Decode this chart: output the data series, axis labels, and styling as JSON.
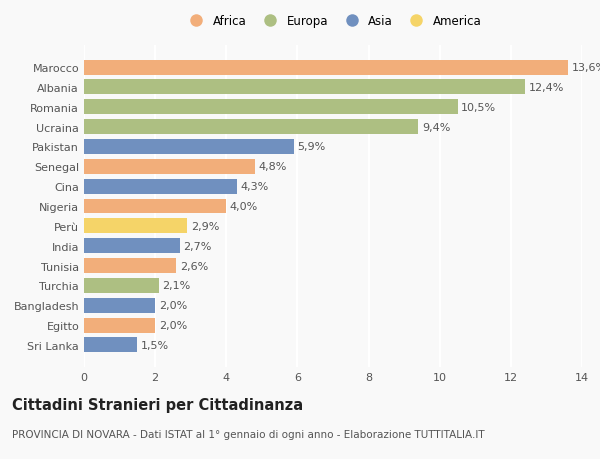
{
  "countries": [
    "Sri Lanka",
    "Egitto",
    "Bangladesh",
    "Turchia",
    "Tunisia",
    "India",
    "Perù",
    "Nigeria",
    "Cina",
    "Senegal",
    "Pakistan",
    "Ucraina",
    "Romania",
    "Albania",
    "Marocco"
  ],
  "values": [
    1.5,
    2.0,
    2.0,
    2.1,
    2.6,
    2.7,
    2.9,
    4.0,
    4.3,
    4.8,
    5.9,
    9.4,
    10.5,
    12.4,
    13.6
  ],
  "continents": [
    "Asia",
    "Africa",
    "Asia",
    "Europa",
    "Africa",
    "Asia",
    "America",
    "Africa",
    "Asia",
    "Africa",
    "Asia",
    "Europa",
    "Europa",
    "Europa",
    "Africa"
  ],
  "colors": {
    "Africa": "#F2AE7A",
    "Europa": "#ADBF82",
    "Asia": "#7090BF",
    "America": "#F5D468"
  },
  "legend_order": [
    "Africa",
    "Europa",
    "Asia",
    "America"
  ],
  "xlim": [
    0,
    14
  ],
  "xticks": [
    0,
    2,
    4,
    6,
    8,
    10,
    12,
    14
  ],
  "title": "Cittadini Stranieri per Cittadinanza",
  "subtitle": "PROVINCIA DI NOVARA - Dati ISTAT al 1° gennaio di ogni anno - Elaborazione TUTTITALIA.IT",
  "background_color": "#f9f9f9",
  "grid_color": "#ffffff",
  "bar_height": 0.75,
  "label_fontsize": 8,
  "ytick_fontsize": 8,
  "xtick_fontsize": 8,
  "title_fontsize": 10.5,
  "subtitle_fontsize": 7.5
}
